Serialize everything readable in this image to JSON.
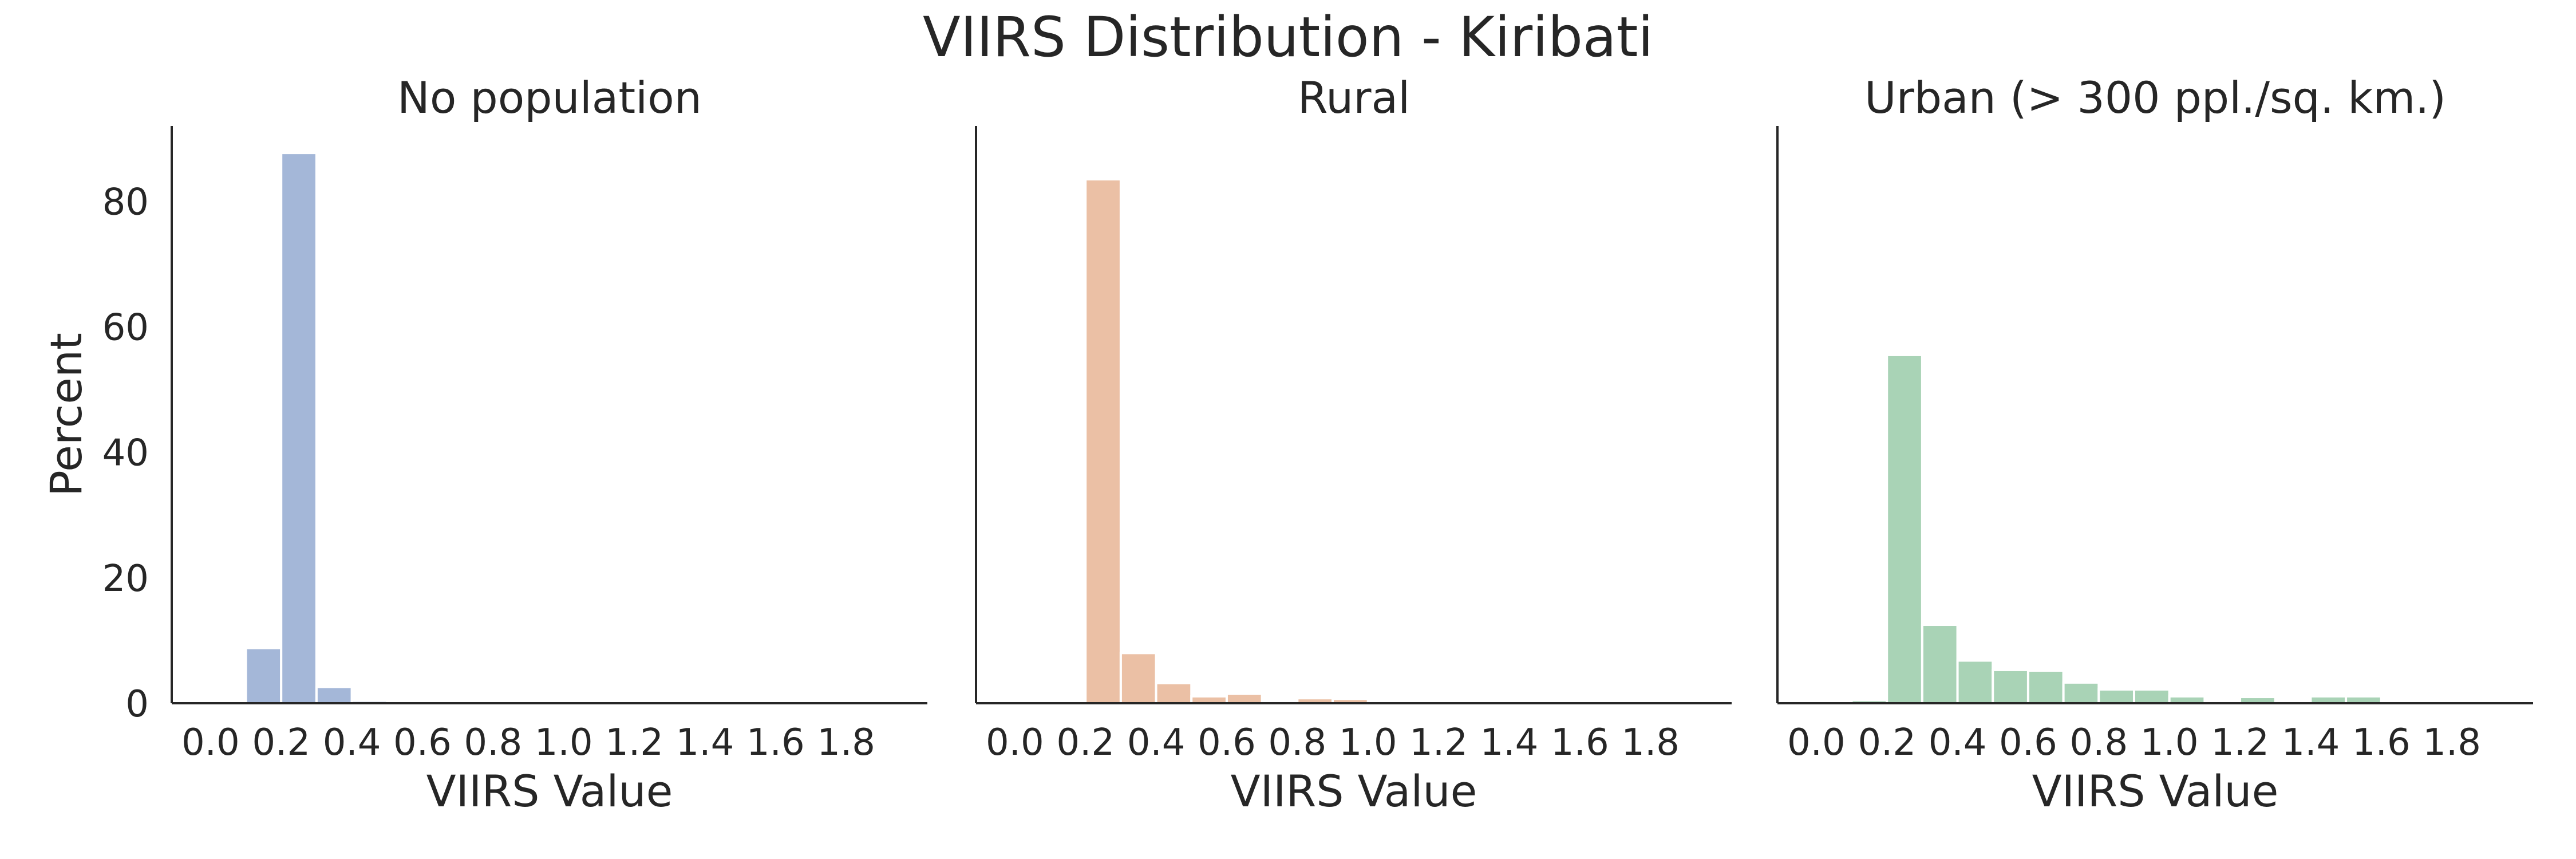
{
  "figure": {
    "title": "VIIRS Distribution - Kiribati"
  },
  "chart_data": [
    {
      "type": "bar",
      "title": "No population",
      "xlabel": "VIIRS Value",
      "ylabel": "Percent",
      "xlim": [
        -0.11,
        2.03
      ],
      "ylim": [
        0,
        92
      ],
      "xticks": [
        "0.0",
        "0.2",
        "0.4",
        "0.6",
        "0.8",
        "1.0",
        "1.2",
        "1.4",
        "1.6",
        "1.8"
      ],
      "yticks": [
        "0",
        "20",
        "40",
        "60",
        "80"
      ],
      "bin_width": 0.1,
      "bins": [
        {
          "x0": 0.1,
          "value": 8.8
        },
        {
          "x0": 0.2,
          "value": 87.7
        },
        {
          "x0": 0.3,
          "value": 2.6
        },
        {
          "x0": 0.4,
          "value": 0.4
        }
      ],
      "color": "#a4b7d8"
    },
    {
      "type": "bar",
      "title": "Rural",
      "xlabel": "VIIRS Value",
      "ylabel": "",
      "xlim": [
        -0.11,
        2.03
      ],
      "ylim": [
        0,
        92
      ],
      "xticks": [
        "0.0",
        "0.2",
        "0.4",
        "0.6",
        "0.8",
        "1.0",
        "1.2",
        "1.4",
        "1.6",
        "1.8"
      ],
      "yticks": [],
      "bin_width": 0.1,
      "bins": [
        {
          "x0": 0.2,
          "value": 83.5
        },
        {
          "x0": 0.3,
          "value": 8.0
        },
        {
          "x0": 0.4,
          "value": 3.2
        },
        {
          "x0": 0.5,
          "value": 1.1
        },
        {
          "x0": 0.6,
          "value": 1.5
        },
        {
          "x0": 0.8,
          "value": 0.8
        },
        {
          "x0": 0.9,
          "value": 0.7
        }
      ],
      "color": "#ebc0a5"
    },
    {
      "type": "bar",
      "title": "Urban (> 300 ppl./sq. km.)",
      "xlabel": "VIIRS Value",
      "ylabel": "",
      "xlim": [
        -0.11,
        2.03
      ],
      "ylim": [
        0,
        92
      ],
      "xticks": [
        "0.0",
        "0.2",
        "0.4",
        "0.6",
        "0.8",
        "1.0",
        "1.2",
        "1.4",
        "1.6",
        "1.8"
      ],
      "yticks": [],
      "bin_width": 0.1,
      "bins": [
        {
          "x0": 0.1,
          "value": 0.5
        },
        {
          "x0": 0.2,
          "value": 55.5
        },
        {
          "x0": 0.3,
          "value": 12.5
        },
        {
          "x0": 0.4,
          "value": 6.8
        },
        {
          "x0": 0.5,
          "value": 5.3
        },
        {
          "x0": 0.6,
          "value": 5.2
        },
        {
          "x0": 0.7,
          "value": 3.3
        },
        {
          "x0": 0.8,
          "value": 2.2
        },
        {
          "x0": 0.9,
          "value": 2.2
        },
        {
          "x0": 1.0,
          "value": 1.1
        },
        {
          "x0": 1.2,
          "value": 1.0
        },
        {
          "x0": 1.4,
          "value": 1.1
        },
        {
          "x0": 1.5,
          "value": 1.1
        }
      ],
      "color": "#a9d3b6"
    }
  ]
}
